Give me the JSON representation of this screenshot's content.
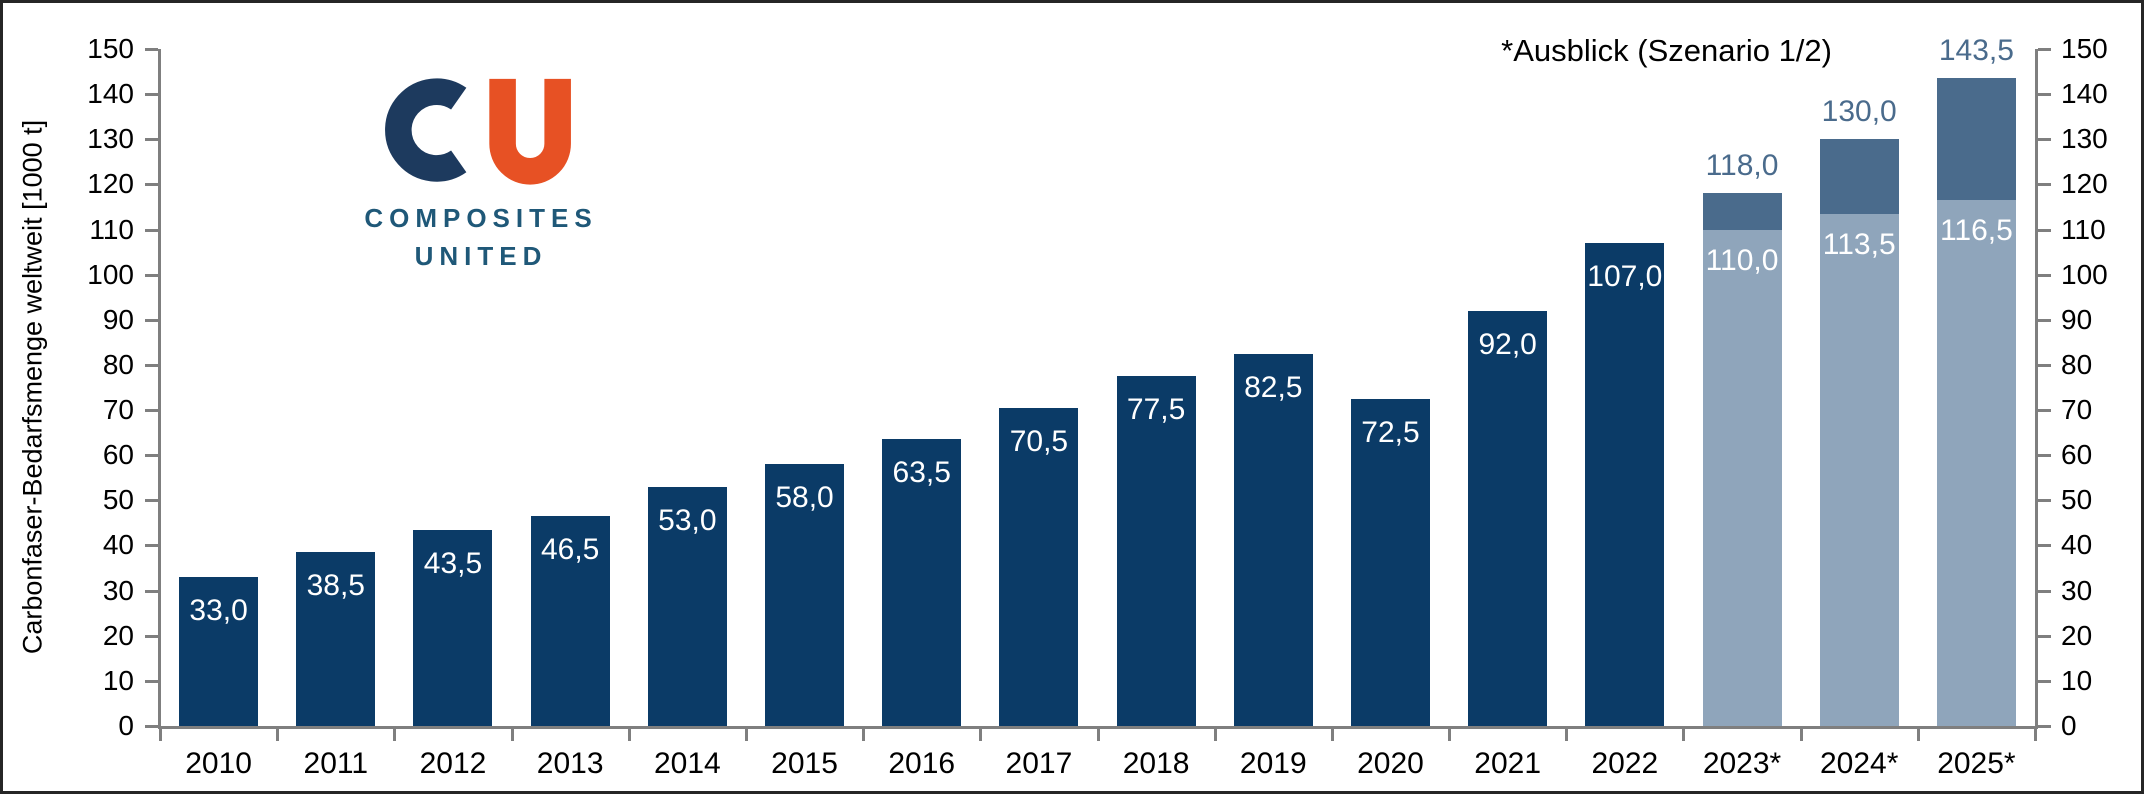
{
  "logo": {
    "mark": "CU",
    "line1": "COMPOSITES",
    "line2": "UNITED"
  },
  "annotation": "*Ausblick (Szenario 1/2)",
  "colors": {
    "bar_actual": "#0b3b67",
    "bar_forecast_low": "#8fa5bb",
    "bar_forecast_high": "#4a6b8c",
    "forecast_label_text": "#4a6b8c",
    "bar_label_text": "#ffffff",
    "axis_line": "#7f7f7f",
    "axis_text": "#000000",
    "logo_navy": "#1d3a5e",
    "logo_orange": "#e75124",
    "logo_text": "#1f5878",
    "background": "#ffffff",
    "frame": "#262626"
  },
  "chart_data": {
    "type": "bar",
    "title": "",
    "ylabel": "Carbonfaser-Bedarfsmenge weltweit [1000 t]",
    "annotation": "*Ausblick (Szenario 1/2)",
    "ylim": [
      0,
      150
    ],
    "ytick_step": 10,
    "grid": false,
    "legend": "none",
    "categories": [
      "2010",
      "2011",
      "2012",
      "2013",
      "2014",
      "2015",
      "2016",
      "2017",
      "2018",
      "2019",
      "2020",
      "2021",
      "2022",
      "2023*",
      "2024*",
      "2025*"
    ],
    "bars": [
      {
        "category": "2010",
        "kind": "actual",
        "value": 33.0,
        "label": "33,0"
      },
      {
        "category": "2011",
        "kind": "actual",
        "value": 38.5,
        "label": "38,5"
      },
      {
        "category": "2012",
        "kind": "actual",
        "value": 43.5,
        "label": "43,5"
      },
      {
        "category": "2013",
        "kind": "actual",
        "value": 46.5,
        "label": "46,5"
      },
      {
        "category": "2014",
        "kind": "actual",
        "value": 53.0,
        "label": "53,0"
      },
      {
        "category": "2015",
        "kind": "actual",
        "value": 58.0,
        "label": "58,0"
      },
      {
        "category": "2016",
        "kind": "actual",
        "value": 63.5,
        "label": "63,5"
      },
      {
        "category": "2017",
        "kind": "actual",
        "value": 70.5,
        "label": "70,5"
      },
      {
        "category": "2018",
        "kind": "actual",
        "value": 77.5,
        "label": "77,5"
      },
      {
        "category": "2019",
        "kind": "actual",
        "value": 82.5,
        "label": "82,5"
      },
      {
        "category": "2020",
        "kind": "actual",
        "value": 72.5,
        "label": "72,5"
      },
      {
        "category": "2021",
        "kind": "actual",
        "value": 92.0,
        "label": "92,0"
      },
      {
        "category": "2022",
        "kind": "actual",
        "value": 107.0,
        "label": "107,0"
      },
      {
        "category": "2023*",
        "kind": "forecast",
        "scenario1": 110.0,
        "scenario1_label": "110,0",
        "scenario2": 118.0,
        "scenario2_label": "118,0"
      },
      {
        "category": "2024*",
        "kind": "forecast",
        "scenario1": 113.5,
        "scenario1_label": "113,5",
        "scenario2": 130.0,
        "scenario2_label": "130,0"
      },
      {
        "category": "2025*",
        "kind": "forecast",
        "scenario1": 116.5,
        "scenario1_label": "116,5",
        "scenario2": 143.5,
        "scenario2_label": "143,5"
      }
    ]
  }
}
